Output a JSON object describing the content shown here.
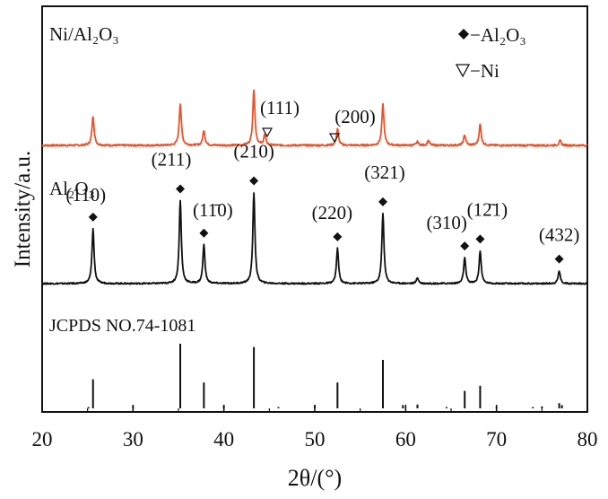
{
  "chart_data": {
    "type": "line",
    "xlabel": "2θ/(°)",
    "ylabel": "Intensity/a.u.",
    "xlim": [
      20,
      80
    ],
    "x_ticks": [
      "20",
      "30",
      "40",
      "50",
      "60",
      "70",
      "80"
    ],
    "grid": false,
    "legend": {
      "placement": "top-right",
      "entries": [
        {
          "marker": "diamond",
          "label": "−Al₂O₃"
        },
        {
          "marker": "triangle-down-open",
          "label": "−Ni"
        }
      ]
    },
    "colors": {
      "ni_series": "#e8542b",
      "al_series": "#111111",
      "reference": "#111111"
    },
    "series": [
      {
        "name": "Ni/Al₂O₃",
        "baseline": 0.55,
        "peaks": [
          {
            "x": 25.6,
            "h": 0.25
          },
          {
            "x": 35.2,
            "h": 0.36
          },
          {
            "x": 37.8,
            "h": 0.13
          },
          {
            "x": 43.3,
            "h": 0.48
          },
          {
            "x": 44.5,
            "h": 0.09
          },
          {
            "x": 52.5,
            "h": 0.14
          },
          {
            "x": 57.5,
            "h": 0.35
          },
          {
            "x": 61.3,
            "h": 0.03
          },
          {
            "x": 62.5,
            "h": 0.04
          },
          {
            "x": 66.5,
            "h": 0.09
          },
          {
            "x": 68.2,
            "h": 0.18
          },
          {
            "x": 77.0,
            "h": 0.04
          }
        ],
        "annotations": [
          {
            "x": 44.5,
            "text": "(111)",
            "marker": "triangle-down-open"
          },
          {
            "x": 52.5,
            "text": "(200)",
            "marker": "triangle-down-open"
          }
        ]
      },
      {
        "name": "Al₂O₃",
        "baseline": 0.35,
        "peaks": [
          {
            "x": 25.6,
            "h": 0.47
          },
          {
            "x": 35.2,
            "h": 0.71
          },
          {
            "x": 37.8,
            "h": 0.33
          },
          {
            "x": 43.3,
            "h": 0.78
          },
          {
            "x": 52.5,
            "h": 0.3
          },
          {
            "x": 57.5,
            "h": 0.6
          },
          {
            "x": 61.3,
            "h": 0.05
          },
          {
            "x": 66.5,
            "h": 0.22
          },
          {
            "x": 68.2,
            "h": 0.28
          },
          {
            "x": 76.9,
            "h": 0.11
          }
        ],
        "annotations": [
          {
            "x": 25.6,
            "text": "(110)",
            "marker": "diamond"
          },
          {
            "x": 35.2,
            "text": "(211)",
            "marker": "diamond"
          },
          {
            "x": 37.8,
            "text": "(11̄0)",
            "marker": "diamond"
          },
          {
            "x": 43.3,
            "text": "(210)",
            "marker": "diamond"
          },
          {
            "x": 52.5,
            "text": "(220)",
            "marker": "diamond"
          },
          {
            "x": 57.5,
            "text": "(321)",
            "marker": "diamond"
          },
          {
            "x": 66.5,
            "text": "(310)",
            "marker": "diamond"
          },
          {
            "x": 68.2,
            "text": "(12̄1)",
            "marker": "diamond"
          },
          {
            "x": 76.9,
            "text": "(432)",
            "marker": "diamond"
          }
        ]
      },
      {
        "name": "JCPDS NO.74-1081",
        "type": "stick",
        "sticks": [
          {
            "x": 25.6,
            "h": 45
          },
          {
            "x": 25.1,
            "h": 2
          },
          {
            "x": 30.0,
            "h": 3
          },
          {
            "x": 35.2,
            "h": 100
          },
          {
            "x": 37.8,
            "h": 40
          },
          {
            "x": 40.0,
            "h": 4
          },
          {
            "x": 43.3,
            "h": 95
          },
          {
            "x": 46.0,
            "h": 2
          },
          {
            "x": 50.0,
            "h": 5
          },
          {
            "x": 52.5,
            "h": 40
          },
          {
            "x": 57.5,
            "h": 75
          },
          {
            "x": 59.7,
            "h": 5
          },
          {
            "x": 61.3,
            "h": 6
          },
          {
            "x": 64.5,
            "h": 2
          },
          {
            "x": 66.5,
            "h": 27
          },
          {
            "x": 68.2,
            "h": 35
          },
          {
            "x": 70.0,
            "h": 2
          },
          {
            "x": 74.0,
            "h": 2
          },
          {
            "x": 75.0,
            "h": 3
          },
          {
            "x": 76.9,
            "h": 8
          },
          {
            "x": 77.2,
            "h": 5
          }
        ]
      }
    ]
  }
}
